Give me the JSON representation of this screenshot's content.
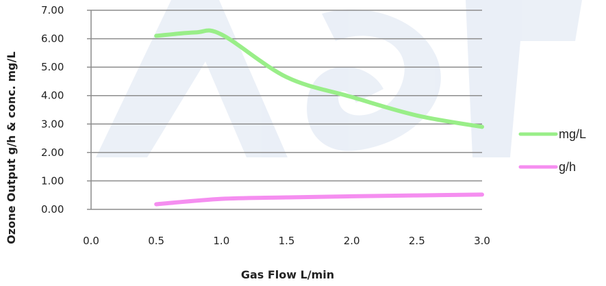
{
  "chart_data": {
    "type": "line",
    "title": "",
    "xlabel": "Gas Flow L/min",
    "ylabel": "Ozone Output g/h & conc. mg/L",
    "xlim": [
      0.0,
      3.0
    ],
    "ylim": [
      0.0,
      7.0
    ],
    "x_ticks": [
      "0.0",
      "0.5",
      "1.0",
      "1.5",
      "2.0",
      "2.5",
      "3.0"
    ],
    "y_ticks": [
      "0.00",
      "1.00",
      "2.00",
      "3.00",
      "4.00",
      "5.00",
      "6.00",
      "7.00"
    ],
    "grid": true,
    "legend_position": "right",
    "series": [
      {
        "name": "mg/L",
        "color": "#99ee88",
        "x": [
          0.5,
          0.8,
          1.0,
          1.5,
          2.0,
          2.5,
          3.0
        ],
        "y": [
          6.1,
          6.22,
          6.15,
          4.65,
          3.95,
          3.3,
          2.9
        ]
      },
      {
        "name": "g/h",
        "color": "#f58ef0",
        "x": [
          0.5,
          1.0,
          1.5,
          2.0,
          2.5,
          3.0
        ],
        "y": [
          0.18,
          0.37,
          0.42,
          0.46,
          0.49,
          0.52
        ]
      }
    ]
  }
}
